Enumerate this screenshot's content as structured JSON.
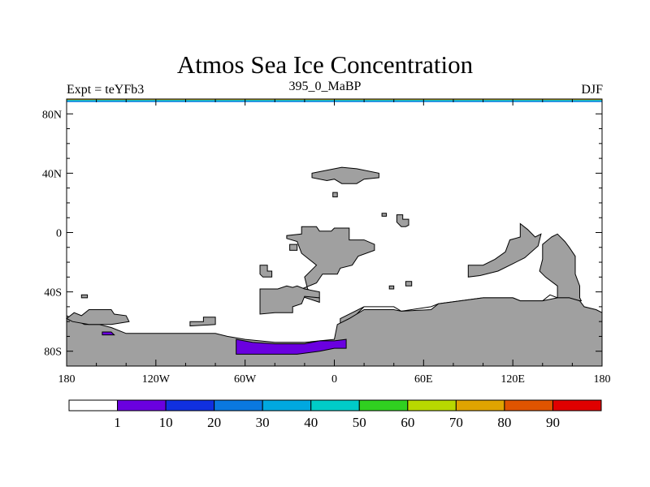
{
  "title": "Atmos Sea Ice Concentration",
  "experiment_label": "Expt = teYFb3",
  "period_label": "395_0_MaBP",
  "season_label": "DJF",
  "map": {
    "projection": "cylindrical equidistant",
    "lon_range": [
      -180,
      180
    ],
    "lat_range": [
      -90,
      90
    ],
    "x_ticks": [
      {
        "lon": -180,
        "label": "180"
      },
      {
        "lon": -120,
        "label": "120W"
      },
      {
        "lon": -60,
        "label": "60W"
      },
      {
        "lon": 0,
        "label": "0"
      },
      {
        "lon": 60,
        "label": "60E"
      },
      {
        "lon": 120,
        "label": "120E"
      },
      {
        "lon": 180,
        "label": "180"
      }
    ],
    "y_ticks": [
      {
        "lat": 80,
        "label": "80N"
      },
      {
        "lat": 40,
        "label": "40N"
      },
      {
        "lat": 0,
        "label": "0"
      },
      {
        "lat": -40,
        "label": "40S"
      },
      {
        "lat": -80,
        "label": "80S"
      }
    ],
    "land_color": "#a0a0a0",
    "ocean_color": "#ffffff",
    "landmasses": [
      {
        "name": "siberia-fragment",
        "lonlat": [
          [
            -15,
            40
          ],
          [
            -5,
            42
          ],
          [
            5,
            44
          ],
          [
            15,
            43
          ],
          [
            30,
            40
          ],
          [
            30,
            37
          ],
          [
            20,
            36
          ],
          [
            15,
            33
          ],
          [
            5,
            33
          ],
          [
            0,
            36
          ],
          [
            -5,
            35
          ],
          [
            -15,
            37
          ]
        ]
      },
      {
        "name": "small-island-a",
        "lonlat": [
          [
            -1,
            27
          ],
          [
            2,
            27
          ],
          [
            2,
            24
          ],
          [
            -1,
            24
          ]
        ]
      },
      {
        "name": "small-island-b",
        "lonlat": [
          [
            32,
            13
          ],
          [
            35,
            13
          ],
          [
            35,
            11
          ],
          [
            32,
            11
          ]
        ]
      },
      {
        "name": "small-island-c",
        "lonlat": [
          [
            42,
            12
          ],
          [
            46,
            12
          ],
          [
            46,
            9
          ],
          [
            50,
            9
          ],
          [
            50,
            5
          ],
          [
            48,
            4
          ],
          [
            45,
            4
          ],
          [
            42,
            7
          ]
        ]
      },
      {
        "name": "south-china-block",
        "lonlat": [
          [
            -22,
            4
          ],
          [
            -12,
            4
          ],
          [
            -10,
            1
          ],
          [
            -2,
            1
          ],
          [
            0,
            3
          ],
          [
            10,
            3
          ],
          [
            10,
            -5
          ],
          [
            20,
            -5
          ],
          [
            27,
            -8
          ],
          [
            27,
            -12
          ],
          [
            16,
            -16
          ],
          [
            12,
            -22
          ],
          [
            4,
            -24
          ],
          [
            2,
            -28
          ],
          [
            -8,
            -28
          ],
          [
            -12,
            -34
          ],
          [
            -22,
            -38
          ],
          [
            -22,
            -43
          ],
          [
            -10,
            -47
          ],
          [
            -10,
            -44
          ],
          [
            -18,
            -38
          ],
          [
            -20,
            -30
          ],
          [
            -12,
            -22
          ],
          [
            -22,
            -14
          ],
          [
            -25,
            -6
          ],
          [
            -32,
            -4
          ],
          [
            -32,
            -2
          ],
          [
            -22,
            -1
          ]
        ]
      },
      {
        "name": "small-island-d",
        "lonlat": [
          [
            -30,
            -8
          ],
          [
            -25,
            -8
          ],
          [
            -25,
            -12
          ],
          [
            -30,
            -12
          ]
        ]
      },
      {
        "name": "small-island-e",
        "lonlat": [
          [
            -50,
            -22
          ],
          [
            -45,
            -22
          ],
          [
            -45,
            -26
          ],
          [
            -42,
            -26
          ],
          [
            -42,
            -30
          ],
          [
            -48,
            -30
          ],
          [
            -50,
            -28
          ]
        ]
      },
      {
        "name": "west-gondwana-fragment",
        "lonlat": [
          [
            -50,
            -38
          ],
          [
            -38,
            -38
          ],
          [
            -32,
            -36
          ],
          [
            -28,
            -37
          ],
          [
            -25,
            -36
          ],
          [
            -20,
            -38
          ],
          [
            -10,
            -40
          ],
          [
            -10,
            -44
          ],
          [
            -20,
            -43
          ],
          [
            -22,
            -48
          ],
          [
            -28,
            -50
          ],
          [
            -28,
            -54
          ],
          [
            -40,
            -54
          ],
          [
            -50,
            -55
          ]
        ]
      },
      {
        "name": "small-island-f",
        "lonlat": [
          [
            37,
            -36
          ],
          [
            40,
            -36
          ],
          [
            40,
            -38
          ],
          [
            37,
            -38
          ]
        ]
      },
      {
        "name": "small-island-g",
        "lonlat": [
          [
            48,
            -33
          ],
          [
            52,
            -33
          ],
          [
            52,
            -36
          ],
          [
            48,
            -36
          ]
        ]
      },
      {
        "name": "east-arc-a",
        "lonlat": [
          [
            90,
            -22
          ],
          [
            100,
            -22
          ],
          [
            108,
            -18
          ],
          [
            115,
            -13
          ],
          [
            118,
            -5
          ],
          [
            125,
            -3
          ],
          [
            125,
            6
          ],
          [
            130,
            2
          ],
          [
            135,
            -3
          ],
          [
            139,
            -1
          ],
          [
            137,
            -9
          ],
          [
            128,
            -17
          ],
          [
            120,
            -21
          ],
          [
            110,
            -26
          ],
          [
            98,
            -29
          ],
          [
            90,
            -30
          ]
        ]
      },
      {
        "name": "east-arc-b",
        "lonlat": [
          [
            146,
            -3
          ],
          [
            150,
            -1
          ],
          [
            155,
            -6
          ],
          [
            158,
            -10
          ],
          [
            162,
            -16
          ],
          [
            162,
            -28
          ],
          [
            165,
            -36
          ],
          [
            165,
            -44
          ],
          [
            166,
            -46
          ],
          [
            160,
            -46
          ],
          [
            158,
            -44
          ],
          [
            150,
            -44
          ],
          [
            145,
            -42
          ],
          [
            140,
            -46
          ],
          [
            125,
            -46
          ],
          [
            120,
            -44
          ],
          [
            105,
            -44
          ],
          [
            100,
            -44
          ],
          [
            70,
            -48
          ],
          [
            65,
            -50
          ],
          [
            45,
            -53
          ],
          [
            40,
            -50
          ],
          [
            30,
            -50
          ],
          [
            20,
            -50
          ],
          [
            12,
            -54
          ],
          [
            4,
            -58
          ],
          [
            4,
            -62
          ],
          [
            12,
            -58
          ],
          [
            16,
            -54
          ],
          [
            20,
            -50
          ],
          [
            30,
            -50
          ],
          [
            40,
            -50
          ],
          [
            45,
            -53
          ],
          [
            65,
            -50
          ],
          [
            70,
            -48
          ],
          [
            100,
            -44
          ],
          [
            125,
            -46
          ],
          [
            140,
            -46
          ],
          [
            145,
            -42
          ],
          [
            150,
            -44
          ],
          [
            150,
            -36
          ],
          [
            142,
            -30
          ],
          [
            138,
            -26
          ],
          [
            140,
            -18
          ],
          [
            140,
            -8
          ]
        ]
      },
      {
        "name": "southern-continent",
        "lonlat": [
          [
            -180,
            -56
          ],
          [
            -176,
            -58
          ],
          [
            -168,
            -62
          ],
          [
            -158,
            -62
          ],
          [
            -150,
            -64
          ],
          [
            -140,
            -68
          ],
          [
            -118,
            -68
          ],
          [
            -100,
            -68
          ],
          [
            -80,
            -68
          ],
          [
            -72,
            -70
          ],
          [
            -60,
            -72
          ],
          [
            -40,
            -74
          ],
          [
            -20,
            -74
          ],
          [
            0,
            -72
          ],
          [
            2,
            -62
          ],
          [
            10,
            -58
          ],
          [
            20,
            -52
          ],
          [
            30,
            -52
          ],
          [
            40,
            -52
          ],
          [
            45,
            -53
          ],
          [
            65,
            -52
          ],
          [
            70,
            -48
          ],
          [
            100,
            -44
          ],
          [
            120,
            -44
          ],
          [
            125,
            -46
          ],
          [
            140,
            -46
          ],
          [
            150,
            -44
          ],
          [
            158,
            -44
          ],
          [
            165,
            -46
          ],
          [
            168,
            -50
          ],
          [
            176,
            -52
          ],
          [
            180,
            -54
          ],
          [
            180,
            -90
          ],
          [
            -180,
            -90
          ]
        ]
      },
      {
        "name": "cape-west",
        "lonlat": [
          [
            -180,
            -58
          ],
          [
            -175,
            -54
          ],
          [
            -170,
            -56
          ],
          [
            -165,
            -52
          ],
          [
            -150,
            -52
          ],
          [
            -148,
            -55
          ],
          [
            -140,
            -56
          ],
          [
            -138,
            -60
          ],
          [
            -150,
            -62
          ],
          [
            -165,
            -62
          ],
          [
            -176,
            -60
          ]
        ]
      },
      {
        "name": "small-island-h",
        "lonlat": [
          [
            -97,
            -60
          ],
          [
            -88,
            -60
          ],
          [
            -88,
            -57
          ],
          [
            -80,
            -57
          ],
          [
            -80,
            -62
          ],
          [
            -97,
            -63
          ]
        ]
      },
      {
        "name": "small-island-i",
        "lonlat": [
          [
            -170,
            -42
          ],
          [
            -166,
            -42
          ],
          [
            -166,
            -44
          ],
          [
            -170,
            -44
          ]
        ]
      }
    ],
    "sea_ice_patches": [
      {
        "name": "ice-weddell",
        "value": 5,
        "lonlat": [
          [
            -66,
            -72
          ],
          [
            -55,
            -74
          ],
          [
            -40,
            -75
          ],
          [
            -20,
            -75
          ],
          [
            -10,
            -73
          ],
          [
            0,
            -73
          ],
          [
            8,
            -72
          ],
          [
            8,
            -78
          ],
          [
            0,
            -78
          ],
          [
            -10,
            -80
          ],
          [
            -25,
            -82
          ],
          [
            -45,
            -82
          ],
          [
            -66,
            -82
          ]
        ]
      },
      {
        "name": "ice-ross-fleck",
        "value": 5,
        "lonlat": [
          [
            -156,
            -67
          ],
          [
            -150,
            -67
          ],
          [
            -148,
            -69
          ],
          [
            -156,
            -69
          ]
        ]
      }
    ],
    "top_band_colors": [
      "#e0a000",
      "#00c8c8",
      "#0070e0"
    ]
  },
  "colorbar": {
    "colors": [
      "#ffffff",
      "#6a00e0",
      "#1030e0",
      "#0a78e0",
      "#00a8e0",
      "#00ccc8",
      "#30d020",
      "#b8d800",
      "#e0a400",
      "#e05400",
      "#e00000"
    ],
    "labels": [
      "1",
      "10",
      "20",
      "30",
      "40",
      "50",
      "60",
      "70",
      "80",
      "90"
    ]
  }
}
